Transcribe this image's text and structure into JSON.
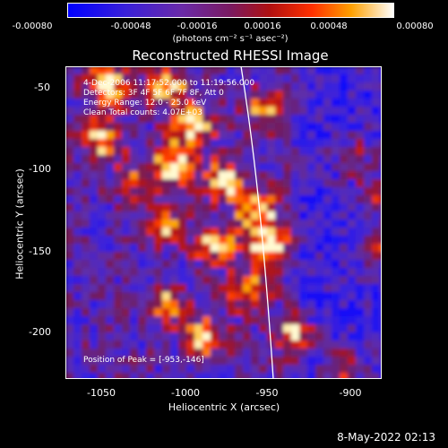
{
  "colorbar": {
    "ticks": [
      "-0.00080",
      "-0.00048",
      "-0.00016",
      "0.00016",
      "0.00048",
      "0.00080"
    ],
    "units": "(photons cm⁻² s⁻¹ asec⁻²)",
    "min": -0.0008,
    "max": 0.0008
  },
  "title": "Reconstructed RHESSI Image",
  "annotations": {
    "time": "4-Dec-2006 11:17:52.000 to 11:19:56.000",
    "detectors": "Detectors: 3F 4F 5F 6F 7F 8F, Att 0",
    "energy": "Energy Range: 12.0 - 25.0 keV",
    "clean": "Clean     Total counts: 4.07E+03",
    "peak": "Position of Peak = [-953,-146]"
  },
  "axes": {
    "x_title": "Heliocentric X (arcsec)",
    "y_title": "Heliocentric Y (arcsec)",
    "x_ticks": [
      "-1050",
      "-1000",
      "-950",
      "-900"
    ],
    "y_ticks": [
      "-50",
      "-100",
      "-150",
      "-200"
    ],
    "x_range": [
      -1075,
      -880
    ],
    "y_range": [
      -40,
      -230
    ]
  },
  "timestamp": "8-May-2022 02:13"
}
